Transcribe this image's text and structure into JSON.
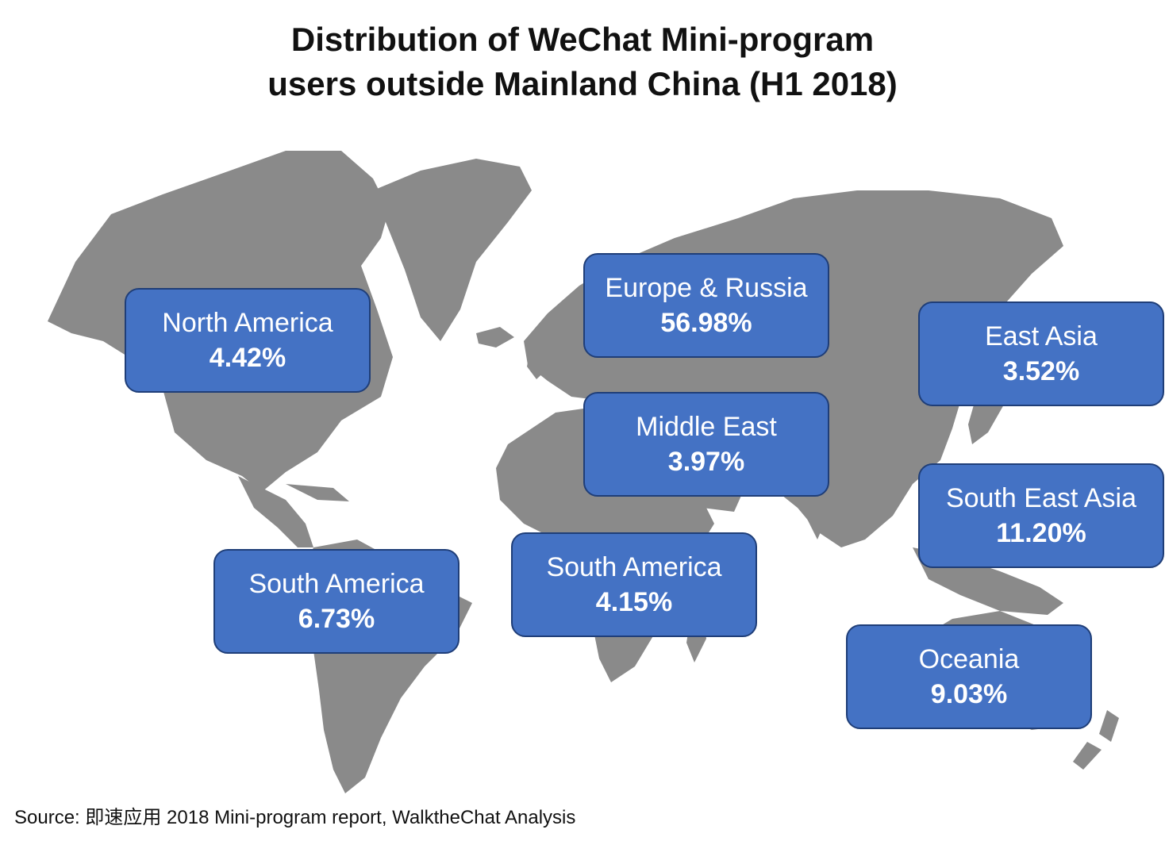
{
  "title": {
    "line1": "Distribution of WeChat Mini-program",
    "line2": "users outside Mainland China (H1 2018)"
  },
  "regions": [
    {
      "name": "North America",
      "value": "4.42%"
    },
    {
      "name": "Europe & Russia",
      "value": "56.98%"
    },
    {
      "name": "East Asia",
      "value": "3.52%"
    },
    {
      "name": "Middle East",
      "value": "3.97%"
    },
    {
      "name": "South East Asia",
      "value": "11.20%"
    },
    {
      "name": "South America",
      "value": "6.73%"
    },
    {
      "name": "South America",
      "value": "4.15%"
    },
    {
      "name": "Oceania",
      "value": "9.03%"
    }
  ],
  "source": "Source: 即速应用 2018 Mini-program report, WalktheChat Analysis",
  "colors": {
    "land": "#8a8a8a",
    "box_fill": "#4472c4",
    "box_border": "#1f3e78",
    "box_text": "#ffffff"
  }
}
